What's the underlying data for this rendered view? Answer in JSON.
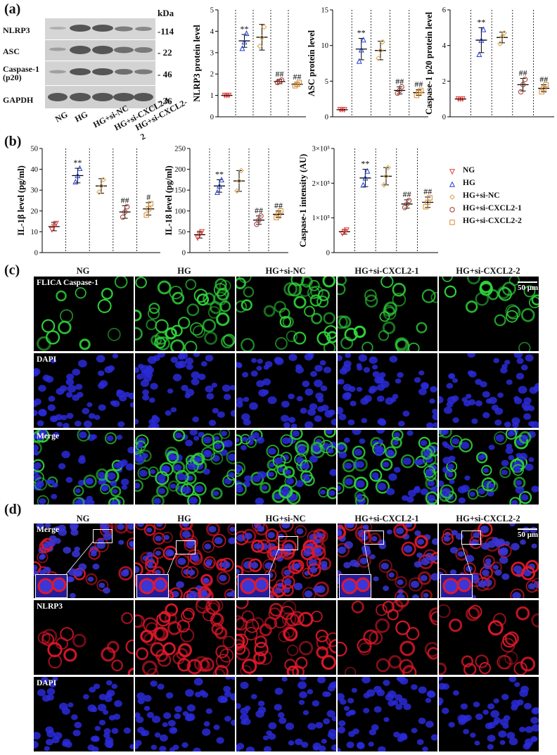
{
  "panel_labels": {
    "a": "(a)",
    "b": "(b)",
    "c": "(c)",
    "d": "(d)"
  },
  "western_blot": {
    "kda_label": "kDa",
    "rows": [
      {
        "protein": "NLRP3",
        "kda": "-114"
      },
      {
        "protein": "ASC",
        "kda": "- 22"
      },
      {
        "protein": "Caspase-1\n(p20)",
        "kda": "- 46"
      },
      {
        "protein": "GAPDH",
        "kda": "- 36"
      }
    ],
    "lanes": [
      "NG",
      "HG",
      "HG+si-NC",
      "HG+si-CXCL2-1",
      "HG+si-CXCL2-2"
    ]
  },
  "groups": [
    "NG",
    "HG",
    "HG+si-NC",
    "HG+si-CXCL2-1",
    "HG+si-CXCL2-2"
  ],
  "colors": {
    "NG": "#e53935",
    "HG": "#1f3fd1",
    "HG+si-NC": "#d9a14a",
    "HG+si-CXCL2-1": "#a0342a",
    "HG+si-CXCL2-2": "#d98a2b"
  },
  "chart_data": [
    {
      "type": "scatter",
      "ylabel": "NLRP3 protein level",
      "ylim": [
        0,
        5
      ],
      "yticks": [
        "0",
        "1",
        "2",
        "3",
        "4",
        "5"
      ],
      "means": [
        1.0,
        3.55,
        3.72,
        1.65,
        1.52
      ],
      "sd": [
        0.02,
        0.3,
        0.6,
        0.1,
        0.1
      ],
      "points": [
        [
          1,
          1,
          1
        ],
        [
          3.2,
          3.5,
          3.9
        ],
        [
          3.3,
          3.7,
          4.2
        ],
        [
          1.6,
          1.65,
          1.72
        ],
        [
          1.45,
          1.52,
          1.6
        ]
      ],
      "annotations": [
        "",
        "**",
        "",
        "##",
        "##"
      ]
    },
    {
      "type": "scatter",
      "ylabel": "ASC protein level",
      "ylim": [
        0,
        15
      ],
      "yticks": [
        "0",
        "5",
        "10",
        "15"
      ],
      "means": [
        1.0,
        9.5,
        9.3,
        3.7,
        3.4
      ],
      "sd": [
        0.05,
        1.5,
        1.3,
        0.5,
        0.4
      ],
      "points": [
        [
          1,
          1,
          1
        ],
        [
          7.8,
          9.4,
          10.8
        ],
        [
          8.2,
          9.3,
          10.5
        ],
        [
          3.3,
          3.7,
          4.2
        ],
        [
          3.0,
          3.4,
          3.7
        ]
      ],
      "annotations": [
        "",
        "**",
        "",
        "##",
        "##"
      ]
    },
    {
      "type": "scatter",
      "ylabel": "Caspase-1 p20 protein level",
      "ylim": [
        0,
        6
      ],
      "yticks": [
        "0",
        "2",
        "4",
        "6"
      ],
      "means": [
        1.0,
        4.3,
        4.45,
        1.8,
        1.6
      ],
      "sd": [
        0.02,
        0.7,
        0.3,
        0.35,
        0.2
      ],
      "points": [
        [
          1,
          1,
          1
        ],
        [
          3.5,
          4.3,
          4.9
        ],
        [
          4.1,
          4.5,
          4.7
        ],
        [
          1.4,
          1.8,
          2.1
        ],
        [
          1.4,
          1.6,
          1.8
        ]
      ],
      "annotations": [
        "",
        "**",
        "",
        "##",
        "##"
      ]
    },
    {
      "type": "scatter",
      "ylabel": "IL-1β level (pg/ml)",
      "ylim": [
        0,
        50
      ],
      "yticks": [
        "0",
        "10",
        "20",
        "30",
        "40",
        "50"
      ],
      "means": [
        12.5,
        37,
        32,
        19.5,
        21
      ],
      "sd": [
        2,
        3.5,
        3.5,
        3,
        3
      ],
      "points": [
        [
          11,
          12.5,
          14
        ],
        [
          34,
          37,
          40.5
        ],
        [
          29,
          32,
          35
        ],
        [
          17,
          19.5,
          22
        ],
        [
          18,
          21,
          23.5
        ]
      ],
      "annotations": [
        "",
        "**",
        "",
        "##",
        "#"
      ]
    },
    {
      "type": "scatter",
      "ylabel": "IL-18 level (pg/ml)",
      "ylim": [
        0,
        250
      ],
      "yticks": [
        "0",
        "50",
        "100",
        "150",
        "200",
        "250"
      ],
      "means": [
        43,
        160,
        172,
        78,
        92
      ],
      "sd": [
        8,
        15,
        25,
        10,
        8
      ],
      "points": [
        [
          35,
          43,
          50
        ],
        [
          145,
          160,
          175
        ],
        [
          148,
          172,
          197
        ],
        [
          68,
          78,
          88
        ],
        [
          84,
          92,
          100
        ]
      ],
      "annotations": [
        "",
        "**",
        "",
        "##",
        "##"
      ]
    },
    {
      "type": "scatter",
      "ylabel": "Caspase-1 intensity (AU)",
      "ylim": [
        0,
        300000
      ],
      "yticks": [
        "0",
        "1×10⁵",
        "2×10⁵",
        "3×10⁵"
      ],
      "means": [
        60000,
        215000,
        220000,
        140000,
        145000
      ],
      "sd": [
        7000,
        25000,
        25000,
        12000,
        15000
      ],
      "points": [
        [
          55000,
          60000,
          65000
        ],
        [
          195000,
          215000,
          235000
        ],
        [
          195000,
          220000,
          245000
        ],
        [
          130000,
          140000,
          150000
        ],
        [
          132000,
          145000,
          158000
        ]
      ],
      "annotations": [
        "",
        "**",
        "",
        "##",
        "##"
      ]
    }
  ],
  "legend": [
    "NG",
    "HG",
    "HG+si-NC",
    "HG+si-CXCL2-1",
    "HG+si-CXCL2-2"
  ],
  "panel_c": {
    "columns": [
      "NG",
      "HG",
      "HG+si-NC",
      "HG+si-CXCL2-1",
      "HG+si-CXCL2-2"
    ],
    "row_labels": [
      "FLICA Caspase-1",
      "DAPI",
      "Merge"
    ],
    "scale_label": "50 μm"
  },
  "panel_d": {
    "columns": [
      "NG",
      "HG",
      "HG+si-NC",
      "HG+si-CXCL2-1",
      "HG+si-CXCL2-2"
    ],
    "row_labels": [
      "Merge",
      "NLRP3",
      "DAPI"
    ],
    "scale_label": "50 μm"
  }
}
